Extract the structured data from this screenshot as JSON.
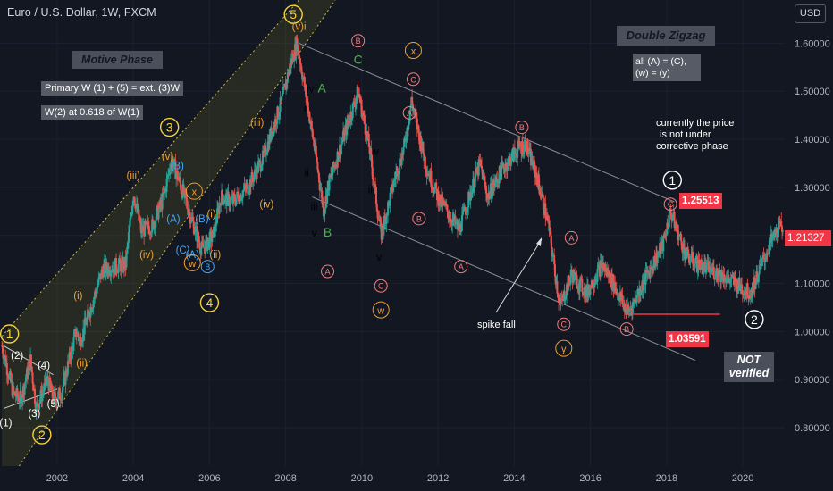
{
  "header": {
    "title": "Euro / U.S. Dollar, 1W, FXCM",
    "currency_button": "USD"
  },
  "colors": {
    "background": "#131722",
    "up": "#26a69a",
    "down": "#ef5350",
    "orange_label": "#f0a030",
    "yellow_label": "#f5d33b",
    "pink_label": "#f27c7c",
    "green_label": "#4caf50",
    "blue_label": "#42a5f5"
  },
  "annotations": {
    "motive_phase": "Motive Phase",
    "primary_rule": "Primary W (1) + (5) = ext. (3)W",
    "w2_rule": "W(2) at 0.618 of W(1)",
    "double_zigzag": "Double Zigzag",
    "dz_rule_1": "all (A) = (C),",
    "dz_rule_2": "(w) = (y)",
    "current_note_1": "currently the price",
    "current_note_2": "is not under",
    "current_note_3": "corrective phase",
    "spike_fall": "spike fall",
    "not_verified_1": "NOT",
    "not_verified_2": "verified"
  },
  "price_tags": {
    "high": "1.25513",
    "low": "1.03591",
    "last": "1.21327"
  },
  "chart_data": {
    "type": "candlestick",
    "title": "Euro / U.S. Dollar, 1W, FXCM",
    "x_ticks": [
      "2002",
      "2004",
      "2006",
      "2008",
      "2010",
      "2012",
      "2014",
      "2016",
      "2018",
      "2020"
    ],
    "y_ticks": [
      "0.80000",
      "0.90000",
      "1.00000",
      "1.10000",
      "1.20000",
      "1.30000",
      "1.40000",
      "1.50000",
      "1.60000"
    ],
    "xlim": [
      2000.5,
      2021.1
    ],
    "ylim": [
      0.72,
      1.69
    ],
    "waypoints": [
      [
        2000.55,
        0.97
      ],
      [
        2000.85,
        0.87
      ],
      [
        2001.05,
        0.86
      ],
      [
        2001.3,
        0.94
      ],
      [
        2001.45,
        0.84
      ],
      [
        2001.75,
        0.9
      ],
      [
        2001.9,
        0.86
      ],
      [
        2002.1,
        0.87
      ],
      [
        2002.5,
        1.0
      ],
      [
        2002.6,
        0.98
      ],
      [
        2003.2,
        1.13
      ],
      [
        2003.8,
        1.14
      ],
      [
        2004.0,
        1.29
      ],
      [
        2004.2,
        1.21
      ],
      [
        2004.5,
        1.22
      ],
      [
        2004.8,
        1.28
      ],
      [
        2005.0,
        1.36
      ],
      [
        2005.3,
        1.29
      ],
      [
        2005.5,
        1.24
      ],
      [
        2005.8,
        1.17
      ],
      [
        2006.1,
        1.2
      ],
      [
        2006.3,
        1.28
      ],
      [
        2006.6,
        1.27
      ],
      [
        2007.0,
        1.3
      ],
      [
        2007.4,
        1.36
      ],
      [
        2007.9,
        1.48
      ],
      [
        2008.1,
        1.55
      ],
      [
        2008.3,
        1.6
      ],
      [
        2008.6,
        1.46
      ],
      [
        2008.8,
        1.36
      ],
      [
        2009.0,
        1.25
      ],
      [
        2009.1,
        1.3
      ],
      [
        2009.5,
        1.4
      ],
      [
        2009.9,
        1.5
      ],
      [
        2010.2,
        1.38
      ],
      [
        2010.5,
        1.2
      ],
      [
        2010.9,
        1.33
      ],
      [
        2011.1,
        1.38
      ],
      [
        2011.3,
        1.48
      ],
      [
        2011.7,
        1.34
      ],
      [
        2012.0,
        1.28
      ],
      [
        2012.55,
        1.21
      ],
      [
        2012.7,
        1.25
      ],
      [
        2013.1,
        1.35
      ],
      [
        2013.3,
        1.28
      ],
      [
        2013.7,
        1.34
      ],
      [
        2014.1,
        1.38
      ],
      [
        2014.3,
        1.39
      ],
      [
        2014.6,
        1.32
      ],
      [
        2014.9,
        1.22
      ],
      [
        2015.2,
        1.05
      ],
      [
        2015.5,
        1.12
      ],
      [
        2015.9,
        1.08
      ],
      [
        2016.3,
        1.14
      ],
      [
        2016.6,
        1.1
      ],
      [
        2016.9,
        1.05
      ],
      [
        2017.0,
        1.04
      ],
      [
        2017.5,
        1.12
      ],
      [
        2017.9,
        1.18
      ],
      [
        2018.1,
        1.25
      ],
      [
        2018.5,
        1.16
      ],
      [
        2018.8,
        1.14
      ],
      [
        2019.4,
        1.12
      ],
      [
        2019.8,
        1.1
      ],
      [
        2020.2,
        1.08
      ],
      [
        2020.5,
        1.14
      ],
      [
        2020.7,
        1.18
      ],
      [
        2020.9,
        1.21
      ],
      [
        2021.05,
        1.22
      ]
    ],
    "wave_labels": [
      {
        "text": "1",
        "x": 2000.75,
        "y": 0.995,
        "style": "yellow-circle"
      },
      {
        "text": "2",
        "x": 2001.6,
        "y": 0.785,
        "style": "yellow-circle"
      },
      {
        "text": "3",
        "x": 2004.95,
        "y": 1.425,
        "style": "yellow-circle"
      },
      {
        "text": "4",
        "x": 2006.0,
        "y": 1.06,
        "style": "yellow-circle"
      },
      {
        "text": "5",
        "x": 2008.2,
        "y": 1.66,
        "style": "yellow-circle"
      },
      {
        "text": "(1)",
        "x": 2000.65,
        "y": 0.81,
        "style": "white"
      },
      {
        "text": "(2)",
        "x": 2000.95,
        "y": 0.95,
        "style": "white"
      },
      {
        "text": "(3)",
        "x": 2001.4,
        "y": 0.83,
        "style": "white"
      },
      {
        "text": "(4)",
        "x": 2001.65,
        "y": 0.93,
        "style": "white"
      },
      {
        "text": "(5)",
        "x": 2001.9,
        "y": 0.85,
        "style": "white"
      },
      {
        "text": "(i)",
        "x": 2002.55,
        "y": 1.075,
        "style": "orange"
      },
      {
        "text": "(ii)",
        "x": 2002.65,
        "y": 0.935,
        "style": "orange"
      },
      {
        "text": "(iii)",
        "x": 2004.0,
        "y": 1.325,
        "style": "orange"
      },
      {
        "text": "(iv)",
        "x": 2004.35,
        "y": 1.16,
        "style": "orange"
      },
      {
        "text": "(v)",
        "x": 2004.9,
        "y": 1.365,
        "style": "orange"
      },
      {
        "text": "(i)",
        "x": 2006.05,
        "y": 1.245,
        "style": "orange"
      },
      {
        "text": "(ii)",
        "x": 2006.15,
        "y": 1.16,
        "style": "orange"
      },
      {
        "text": "(iii)",
        "x": 2007.25,
        "y": 1.435,
        "style": "orange"
      },
      {
        "text": "(iv)",
        "x": 2007.5,
        "y": 1.265,
        "style": "orange"
      },
      {
        "text": "(v)i",
        "x": 2008.35,
        "y": 1.635,
        "style": "orange"
      },
      {
        "text": "(B)",
        "x": 2005.15,
        "y": 1.345,
        "style": "blue"
      },
      {
        "text": "(A)",
        "x": 2005.05,
        "y": 1.235,
        "style": "blue"
      },
      {
        "text": "(B)",
        "x": 2005.8,
        "y": 1.235,
        "style": "blue"
      },
      {
        "text": "(C)",
        "x": 2005.3,
        "y": 1.17,
        "style": "blue"
      },
      {
        "text": "(A)",
        "x": 2005.55,
        "y": 1.16,
        "style": "blue"
      },
      {
        "text": "i",
        "x": 2008.5,
        "y": 1.465,
        "style": "red"
      },
      {
        "text": "ii",
        "x": 2008.55,
        "y": 1.33,
        "style": "red"
      },
      {
        "text": "iv",
        "x": 2008.65,
        "y": 1.505,
        "style": "red"
      },
      {
        "text": "A",
        "x": 2008.95,
        "y": 1.505,
        "style": "green"
      },
      {
        "text": "iii",
        "x": 2008.75,
        "y": 1.26,
        "style": "red"
      },
      {
        "text": "v",
        "x": 2008.75,
        "y": 1.205,
        "style": "red"
      },
      {
        "text": "B",
        "x": 2009.1,
        "y": 1.205,
        "style": "green"
      },
      {
        "text": "C",
        "x": 2009.9,
        "y": 1.565,
        "style": "green"
      },
      {
        "text": "iv",
        "x": 2010.35,
        "y": 1.375,
        "style": "red"
      },
      {
        "text": "iii",
        "x": 2010.25,
        "y": 1.295,
        "style": "red"
      },
      {
        "text": "v",
        "x": 2010.45,
        "y": 1.155,
        "style": "red"
      }
    ],
    "circle_labels": [
      {
        "text": "X",
        "x": 2005.6,
        "y": 1.292,
        "style": "orange"
      },
      {
        "text": "W",
        "x": 2005.55,
        "y": 1.143,
        "style": "orange"
      },
      {
        "text": "B",
        "x": 2005.95,
        "y": 1.135,
        "style": "blue"
      },
      {
        "text": "B",
        "x": 2009.9,
        "y": 1.605,
        "style": "pink"
      },
      {
        "text": "A",
        "x": 2009.1,
        "y": 1.125,
        "style": "pink"
      },
      {
        "text": "C",
        "x": 2010.5,
        "y": 1.095,
        "style": "pink"
      },
      {
        "text": "W",
        "x": 2010.5,
        "y": 1.045,
        "style": "orange"
      },
      {
        "text": "X",
        "x": 2011.35,
        "y": 1.585,
        "style": "orange"
      },
      {
        "text": "C",
        "x": 2011.35,
        "y": 1.525,
        "style": "pink"
      },
      {
        "text": "A",
        "x": 2011.25,
        "y": 1.455,
        "style": "pink"
      },
      {
        "text": "B",
        "x": 2011.5,
        "y": 1.235,
        "style": "pink"
      },
      {
        "text": "A",
        "x": 2012.6,
        "y": 1.135,
        "style": "pink"
      },
      {
        "text": "B",
        "x": 2014.2,
        "y": 1.425,
        "style": "pink"
      },
      {
        "text": "A",
        "x": 2015.5,
        "y": 1.195,
        "style": "pink"
      },
      {
        "text": "C",
        "x": 2015.3,
        "y": 1.015,
        "style": "pink"
      },
      {
        "text": "Y",
        "x": 2015.3,
        "y": 0.965,
        "style": "orange"
      },
      {
        "text": "B",
        "x": 2016.95,
        "y": 1.005,
        "style": "pink"
      },
      {
        "text": "C",
        "x": 2018.1,
        "y": 1.265,
        "style": "pink"
      },
      {
        "text": "1",
        "x": 2018.15,
        "y": 1.315,
        "style": "white-circle"
      },
      {
        "text": "2",
        "x": 2020.3,
        "y": 1.025,
        "style": "white-circle"
      }
    ]
  }
}
